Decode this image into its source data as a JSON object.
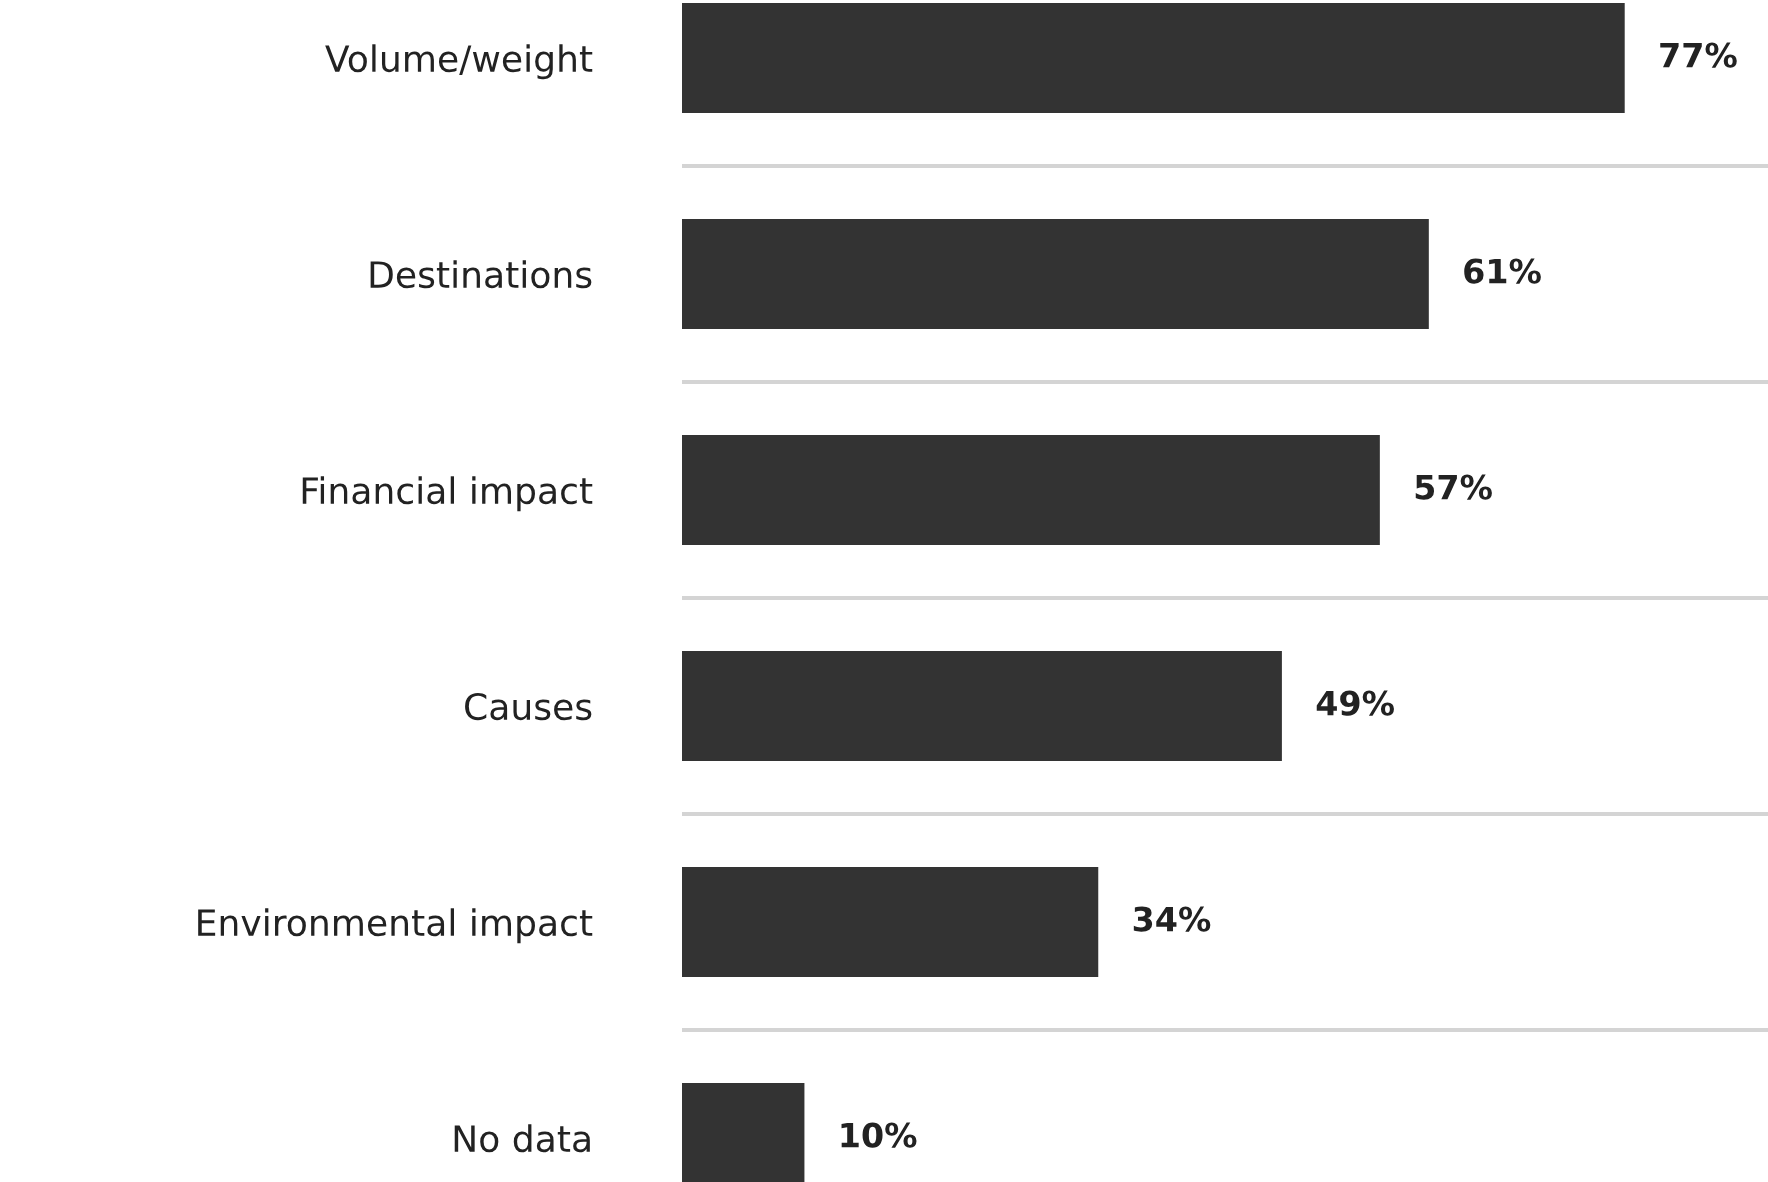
{
  "chart_data": {
    "type": "bar",
    "orientation": "horizontal",
    "categories": [
      "Volume/weight",
      "Destinations",
      "Financial impact",
      "Causes",
      "Environmental impact",
      "No data"
    ],
    "values": [
      77,
      61,
      57,
      49,
      34,
      10
    ],
    "value_labels": [
      "77%",
      "61%",
      "57%",
      "49%",
      "34%",
      "10%"
    ],
    "color": "#333333",
    "grid": "y",
    "legend": false
  }
}
